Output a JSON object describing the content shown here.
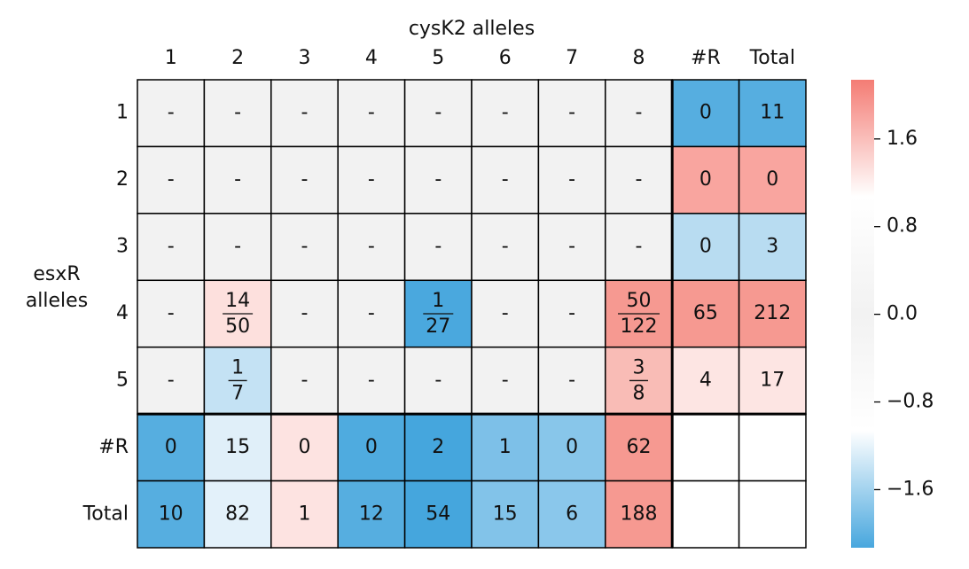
{
  "chart_data": {
    "type": "heatmap",
    "title": "cysK2 alleles",
    "ylabel": [
      "esxR",
      "alleles"
    ],
    "columns": [
      "1",
      "2",
      "3",
      "4",
      "5",
      "6",
      "7",
      "8",
      "#R",
      "Total"
    ],
    "rows": [
      "1",
      "2",
      "3",
      "4",
      "5",
      "#R",
      "Total"
    ],
    "cells": [
      [
        "-",
        "-",
        "-",
        "-",
        "-",
        "-",
        "-",
        "-",
        0,
        11
      ],
      [
        "-",
        "-",
        "-",
        "-",
        "-",
        "-",
        "-",
        "-",
        0,
        0
      ],
      [
        "-",
        "-",
        "-",
        "-",
        "-",
        "-",
        "-",
        "-",
        0,
        3
      ],
      [
        "-",
        {
          "numerator": 14,
          "denominator": 50
        },
        "-",
        "-",
        {
          "numerator": 1,
          "denominator": 27
        },
        "-",
        "-",
        {
          "numerator": 50,
          "denominator": 122
        },
        65,
        212
      ],
      [
        "-",
        {
          "numerator": 1,
          "denominator": 7
        },
        "-",
        "-",
        "-",
        "-",
        "-",
        {
          "numerator": 3,
          "denominator": 8
        },
        4,
        17
      ],
      [
        0,
        15,
        0,
        0,
        2,
        1,
        0,
        62,
        null,
        null
      ],
      [
        10,
        82,
        1,
        12,
        54,
        15,
        6,
        188,
        null,
        null
      ]
    ],
    "colors": [
      [
        "#f2f2f2",
        "#f2f2f2",
        "#f2f2f2",
        "#f2f2f2",
        "#f2f2f2",
        "#f2f2f2",
        "#f2f2f2",
        "#f2f2f2",
        "#56aee0",
        "#56aee0"
      ],
      [
        "#f2f2f2",
        "#f2f2f2",
        "#f2f2f2",
        "#f2f2f2",
        "#f2f2f2",
        "#f2f2f2",
        "#f2f2f2",
        "#f2f2f2",
        "#f9a59f",
        "#f9a59f"
      ],
      [
        "#f2f2f2",
        "#f2f2f2",
        "#f2f2f2",
        "#f2f2f2",
        "#f2f2f2",
        "#f2f2f2",
        "#f2f2f2",
        "#f2f2f2",
        "#b8dcf1",
        "#b8dcf1"
      ],
      [
        "#f2f2f2",
        "#fde0dd",
        "#f2f2f2",
        "#f2f2f2",
        "#4aa8de",
        "#f2f2f2",
        "#f2f2f2",
        "#f69991",
        "#f69991",
        "#f69991"
      ],
      [
        "#f2f2f2",
        "#c4e2f4",
        "#f2f2f2",
        "#f2f2f2",
        "#f2f2f2",
        "#f2f2f2",
        "#f2f2f2",
        "#f9bcb6",
        "#fde5e3",
        "#fde5e3"
      ],
      [
        "#56aee0",
        "#e0eff9",
        "#fde3e1",
        "#4fabdf",
        "#45a6dd",
        "#7dc0e8",
        "#88c6ea",
        "#f69991",
        "#ffffff",
        "#ffffff"
      ],
      [
        "#56aee0",
        "#e3f1fa",
        "#fde3e1",
        "#56aee0",
        "#45a6dd",
        "#82c3e9",
        "#8ac7eb",
        "#f69991",
        "#ffffff",
        "#ffffff"
      ]
    ],
    "colormap": [
      "#48a7de",
      "#ffffff",
      "#f2f2f2",
      "#ffffff",
      "#f47c74"
    ],
    "clim": [
      -2.13,
      2.14
    ],
    "cticks": [
      {
        "value": -1.6,
        "label": "−1.6"
      },
      {
        "value": -0.8,
        "label": "−0.8"
      },
      {
        "value": 0,
        "label": "0.0"
      },
      0.8,
      1.6
    ]
  }
}
